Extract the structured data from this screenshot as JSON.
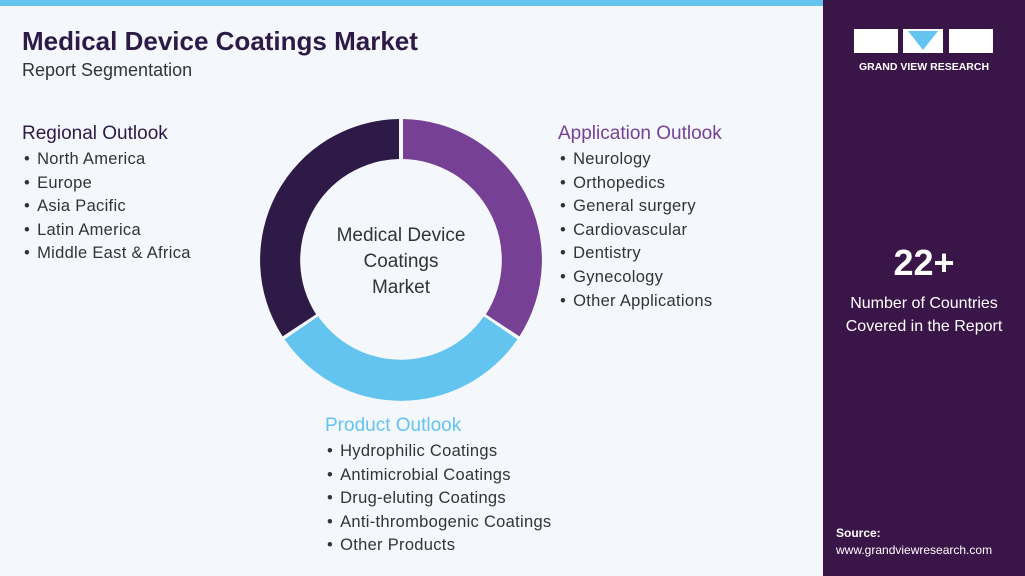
{
  "header": {
    "title": "Medical Device Coatings Market",
    "subtitle": "Report Segmentation"
  },
  "center_label": [
    "Medical Device",
    "Coatings",
    "Market"
  ],
  "segments": [
    {
      "title": "Regional Outlook",
      "items": [
        "North America",
        "Europe",
        "Asia Pacific",
        "Latin America",
        "Middle East & Africa"
      ]
    },
    {
      "title": "Application Outlook",
      "items": [
        "Neurology",
        "Orthopedics",
        "General surgery",
        "Cardiovascular",
        "Dentistry",
        "Gynecology",
        "Other Applications"
      ]
    },
    {
      "title": "Product Outlook",
      "items": [
        "Hydrophilic Coatings",
        "Antimicrobial Coatings",
        "Drug-eluting Coatings",
        "Anti-thrombogenic Coatings",
        "Other Products"
      ]
    }
  ],
  "sidebar": {
    "brand": "GRAND VIEW RESEARCH",
    "stat": "22+",
    "stat_label": [
      "Number of Countries",
      "Covered in the Report"
    ],
    "source_label": "Source:",
    "source_url": "www.grandviewresearch.com"
  }
}
